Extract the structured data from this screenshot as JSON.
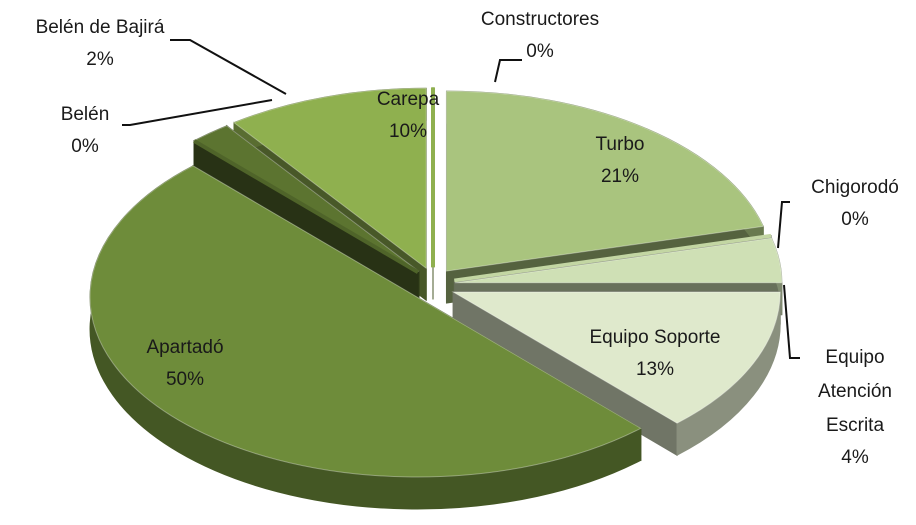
{
  "chart_data": {
    "type": "pie",
    "categories": [
      "Carepa",
      "Constructores",
      "Turbo",
      "Chigorodó",
      "Equipo Atención Escrita",
      "Equipo Soporte",
      "Apartadó",
      "Belén",
      "Belén de Bajirá"
    ],
    "values": [
      10,
      0,
      21,
      0,
      4,
      13,
      50,
      0,
      2
    ],
    "value_labels": [
      "10%",
      "0%",
      "21%",
      "0%",
      "4%",
      "13%",
      "50%",
      "0%",
      "2%"
    ],
    "colors": [
      "#8fb04f",
      "#8fb04f",
      "#a9c47e",
      "#c3d6a3",
      "#cfe0b5",
      "#dfe9cc",
      "#6e8c3a",
      "#4f6429",
      "#5c7430"
    ]
  }
}
